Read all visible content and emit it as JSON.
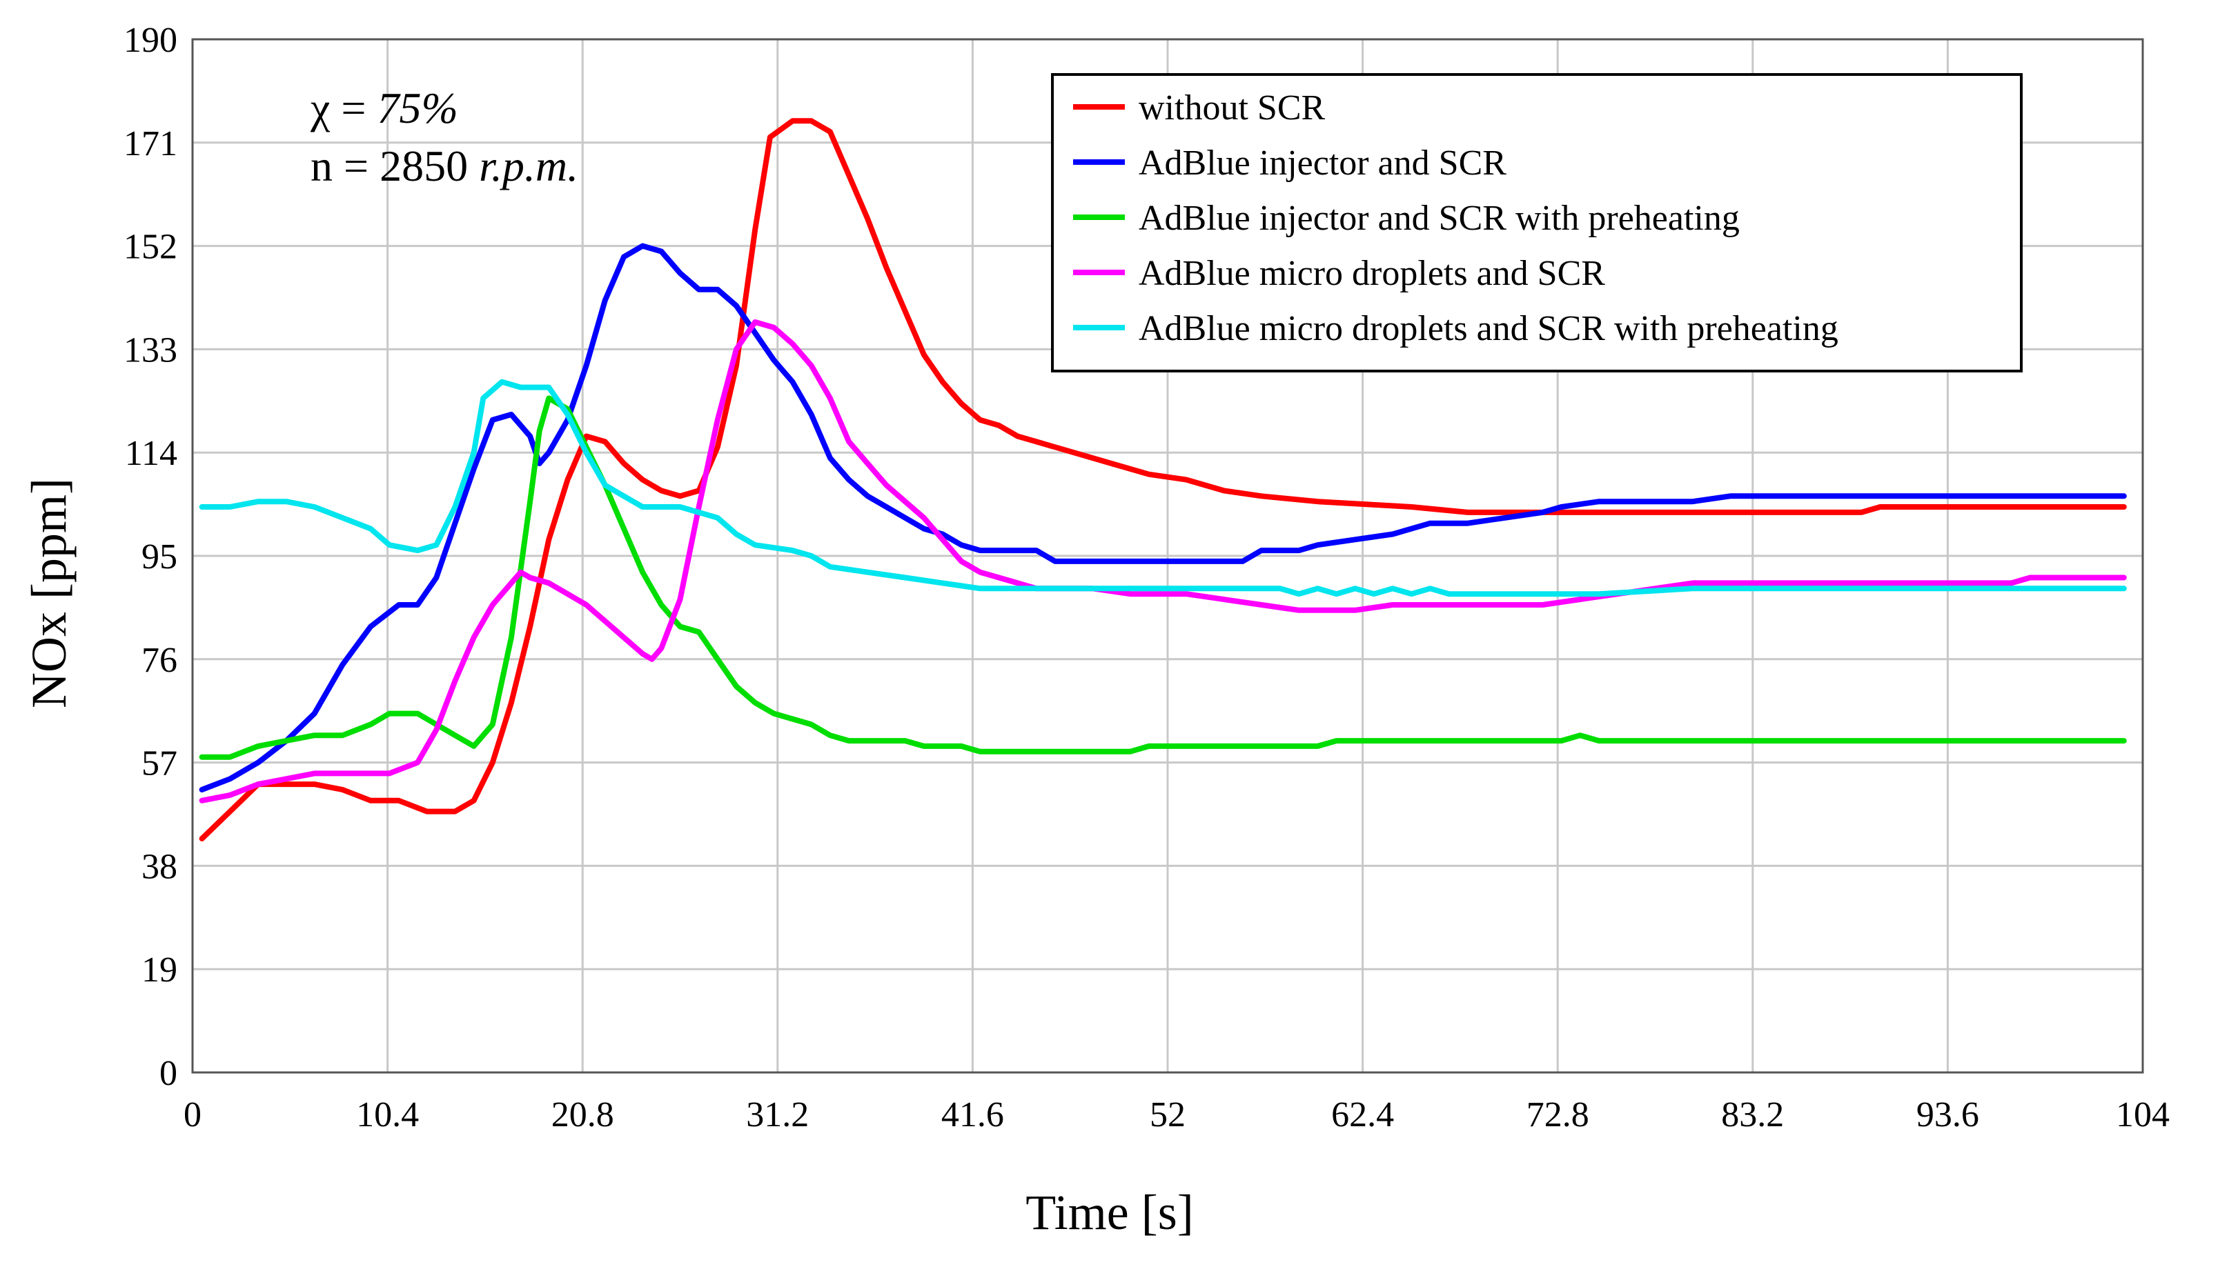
{
  "chart_data": {
    "type": "line",
    "title": "",
    "xlabel": "Time [s]",
    "ylabel": "NOx [ppm]",
    "xlim": [
      0,
      104
    ],
    "ylim": [
      0,
      190
    ],
    "xticks": [
      0,
      10.4,
      20.8,
      31.2,
      41.6,
      52,
      62.4,
      72.8,
      83.2,
      93.6,
      104
    ],
    "yticks": [
      0,
      19,
      38,
      57,
      76,
      95,
      114,
      133,
      152,
      171,
      190
    ],
    "xtick_labels": [
      "0",
      "10.4",
      "20.8",
      "31.2",
      "41.6",
      "52",
      "62.4",
      "72.8",
      "83.2",
      "93.6",
      "104"
    ],
    "ytick_labels": [
      "0",
      "19",
      "38",
      "57",
      "76",
      "95",
      "114",
      "133",
      "152",
      "171",
      "190"
    ],
    "grid": true,
    "legend_position": "top-right",
    "annotations": [
      {
        "prefix": "χ = ",
        "value": "75%"
      },
      {
        "prefix": "n = 2850 ",
        "value": "r.p.m."
      }
    ],
    "series": [
      {
        "name": "without SCR",
        "color": "#ff0000",
        "points": [
          [
            0.5,
            43
          ],
          [
            2,
            48
          ],
          [
            3.5,
            53
          ],
          [
            5,
            53
          ],
          [
            6.5,
            53
          ],
          [
            8,
            52
          ],
          [
            9.5,
            50
          ],
          [
            11,
            50
          ],
          [
            12.5,
            48
          ],
          [
            14,
            48
          ],
          [
            15,
            50
          ],
          [
            16,
            57
          ],
          [
            17,
            68
          ],
          [
            18,
            82
          ],
          [
            19,
            98
          ],
          [
            20,
            109
          ],
          [
            21,
            117
          ],
          [
            22,
            116
          ],
          [
            23,
            112
          ],
          [
            24,
            109
          ],
          [
            25,
            107
          ],
          [
            26,
            106
          ],
          [
            27,
            107
          ],
          [
            28,
            115
          ],
          [
            29,
            130
          ],
          [
            30,
            155
          ],
          [
            30.8,
            172
          ],
          [
            32,
            175
          ],
          [
            33,
            175
          ],
          [
            34,
            173
          ],
          [
            35,
            165
          ],
          [
            36,
            157
          ],
          [
            37,
            148
          ],
          [
            38,
            140
          ],
          [
            39,
            132
          ],
          [
            40,
            127
          ],
          [
            41,
            123
          ],
          [
            42,
            120
          ],
          [
            43,
            119
          ],
          [
            44,
            117
          ],
          [
            45,
            116
          ],
          [
            47,
            114
          ],
          [
            49,
            112
          ],
          [
            51,
            110
          ],
          [
            53,
            109
          ],
          [
            55,
            107
          ],
          [
            57,
            106
          ],
          [
            60,
            105
          ],
          [
            65,
            104
          ],
          [
            68,
            103
          ],
          [
            75,
            103
          ],
          [
            89,
            103
          ],
          [
            90,
            104
          ],
          [
            103,
            104
          ]
        ]
      },
      {
        "name": "AdBlue injector and SCR",
        "color": "#0000ff",
        "points": [
          [
            0.5,
            52
          ],
          [
            2,
            54
          ],
          [
            3.5,
            57
          ],
          [
            5,
            61
          ],
          [
            6.5,
            66
          ],
          [
            8,
            75
          ],
          [
            9.5,
            82
          ],
          [
            11,
            86
          ],
          [
            12,
            86
          ],
          [
            13,
            91
          ],
          [
            14,
            101
          ],
          [
            15,
            111
          ],
          [
            16,
            120
          ],
          [
            17,
            121
          ],
          [
            18,
            117
          ],
          [
            18.5,
            112
          ],
          [
            19,
            114
          ],
          [
            20,
            120
          ],
          [
            21,
            130
          ],
          [
            22,
            142
          ],
          [
            23,
            150
          ],
          [
            24,
            152
          ],
          [
            25,
            151
          ],
          [
            26,
            147
          ],
          [
            27,
            144
          ],
          [
            28,
            144
          ],
          [
            29,
            141
          ],
          [
            30,
            136
          ],
          [
            31,
            131
          ],
          [
            32,
            127
          ],
          [
            33,
            121
          ],
          [
            34,
            113
          ],
          [
            35,
            109
          ],
          [
            36,
            106
          ],
          [
            37,
            104
          ],
          [
            38,
            102
          ],
          [
            39,
            100
          ],
          [
            40,
            99
          ],
          [
            41,
            97
          ],
          [
            42,
            96
          ],
          [
            45,
            96
          ],
          [
            46,
            94
          ],
          [
            56,
            94
          ],
          [
            57,
            96
          ],
          [
            59,
            96
          ],
          [
            60,
            97
          ],
          [
            62,
            98
          ],
          [
            64,
            99
          ],
          [
            66,
            101
          ],
          [
            68,
            101
          ],
          [
            70,
            102
          ],
          [
            72,
            103
          ],
          [
            73,
            104
          ],
          [
            75,
            105
          ],
          [
            80,
            105
          ],
          [
            82,
            106
          ],
          [
            103,
            106
          ]
        ]
      },
      {
        "name": "AdBlue injector and SCR with preheating",
        "color": "#00dd00",
        "points": [
          [
            0.5,
            58
          ],
          [
            2,
            58
          ],
          [
            3.5,
            60
          ],
          [
            5,
            61
          ],
          [
            6.5,
            62
          ],
          [
            8,
            62
          ],
          [
            9.5,
            64
          ],
          [
            10.5,
            66
          ],
          [
            12,
            66
          ],
          [
            13,
            64
          ],
          [
            14,
            62
          ],
          [
            15,
            60
          ],
          [
            16,
            64
          ],
          [
            17,
            80
          ],
          [
            18,
            105
          ],
          [
            18.5,
            118
          ],
          [
            19,
            124
          ],
          [
            20,
            122
          ],
          [
            21,
            115
          ],
          [
            22,
            108
          ],
          [
            23,
            100
          ],
          [
            24,
            92
          ],
          [
            25,
            86
          ],
          [
            26,
            82
          ],
          [
            27,
            81
          ],
          [
            28,
            76
          ],
          [
            29,
            71
          ],
          [
            30,
            68
          ],
          [
            31,
            66
          ],
          [
            32,
            65
          ],
          [
            33,
            64
          ],
          [
            34,
            62
          ],
          [
            35,
            61
          ],
          [
            38,
            61
          ],
          [
            39,
            60
          ],
          [
            41,
            60
          ],
          [
            42,
            59
          ],
          [
            50,
            59
          ],
          [
            51,
            60
          ],
          [
            60,
            60
          ],
          [
            61,
            61
          ],
          [
            73,
            61
          ],
          [
            74,
            62
          ],
          [
            75,
            61
          ],
          [
            103,
            61
          ]
        ]
      },
      {
        "name": "AdBlue micro droplets and SCR",
        "color": "#ff00ff",
        "points": [
          [
            0.5,
            50
          ],
          [
            2,
            51
          ],
          [
            3.5,
            53
          ],
          [
            5,
            54
          ],
          [
            6.5,
            55
          ],
          [
            8,
            55
          ],
          [
            9.5,
            55
          ],
          [
            10.5,
            55
          ],
          [
            12,
            57
          ],
          [
            13,
            63
          ],
          [
            14,
            72
          ],
          [
            15,
            80
          ],
          [
            16,
            86
          ],
          [
            17,
            90
          ],
          [
            17.5,
            92
          ],
          [
            18,
            91
          ],
          [
            19,
            90
          ],
          [
            20,
            88
          ],
          [
            21,
            86
          ],
          [
            22,
            83
          ],
          [
            23,
            80
          ],
          [
            24,
            77
          ],
          [
            24.5,
            76
          ],
          [
            25,
            78
          ],
          [
            26,
            87
          ],
          [
            27,
            104
          ],
          [
            28,
            120
          ],
          [
            29,
            133
          ],
          [
            30,
            138
          ],
          [
            31,
            137
          ],
          [
            32,
            134
          ],
          [
            33,
            130
          ],
          [
            34,
            124
          ],
          [
            35,
            116
          ],
          [
            36,
            112
          ],
          [
            37,
            108
          ],
          [
            38,
            105
          ],
          [
            39,
            102
          ],
          [
            40,
            98
          ],
          [
            41,
            94
          ],
          [
            42,
            92
          ],
          [
            43,
            91
          ],
          [
            44,
            90
          ],
          [
            45,
            89
          ],
          [
            48,
            89
          ],
          [
            50,
            88
          ],
          [
            53,
            88
          ],
          [
            55,
            87
          ],
          [
            57,
            86
          ],
          [
            59,
            85
          ],
          [
            62,
            85
          ],
          [
            64,
            86
          ],
          [
            72,
            86
          ],
          [
            74,
            87
          ],
          [
            76,
            88
          ],
          [
            78,
            89
          ],
          [
            80,
            90
          ],
          [
            97,
            90
          ],
          [
            98,
            91
          ],
          [
            103,
            91
          ]
        ]
      },
      {
        "name": "AdBlue micro droplets and SCR with preheating",
        "color": "#00e5ee",
        "points": [
          [
            0.5,
            104
          ],
          [
            2,
            104
          ],
          [
            3.5,
            105
          ],
          [
            5,
            105
          ],
          [
            6.5,
            104
          ],
          [
            8,
            102
          ],
          [
            9.5,
            100
          ],
          [
            10.5,
            97
          ],
          [
            12,
            96
          ],
          [
            13,
            97
          ],
          [
            14,
            104
          ],
          [
            15,
            114
          ],
          [
            15.5,
            124
          ],
          [
            16.5,
            127
          ],
          [
            17.5,
            126
          ],
          [
            19,
            126
          ],
          [
            20,
            121
          ],
          [
            21,
            114
          ],
          [
            22,
            108
          ],
          [
            23,
            106
          ],
          [
            24,
            104
          ],
          [
            26,
            104
          ],
          [
            28,
            102
          ],
          [
            29,
            99
          ],
          [
            30,
            97
          ],
          [
            32,
            96
          ],
          [
            33,
            95
          ],
          [
            34,
            93
          ],
          [
            36,
            92
          ],
          [
            38,
            91
          ],
          [
            40,
            90
          ],
          [
            42,
            89
          ],
          [
            50,
            89
          ],
          [
            56,
            89
          ],
          [
            58,
            89
          ],
          [
            59,
            88
          ],
          [
            60,
            89
          ],
          [
            61,
            88
          ],
          [
            62,
            89
          ],
          [
            63,
            88
          ],
          [
            64,
            89
          ],
          [
            65,
            88
          ],
          [
            66,
            89
          ],
          [
            67,
            88
          ],
          [
            75,
            88
          ],
          [
            80,
            89
          ],
          [
            103,
            89
          ]
        ]
      }
    ]
  }
}
